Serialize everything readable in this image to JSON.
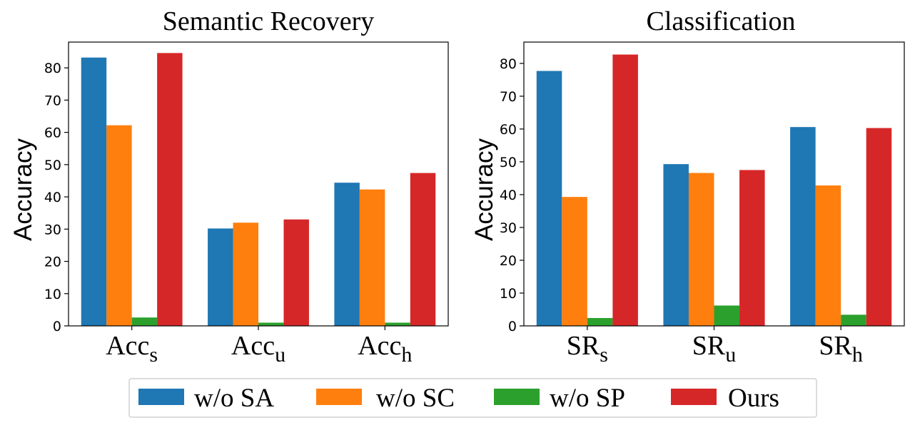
{
  "colors": {
    "w/o SA": "#1f77b4",
    "w/o SC": "#ff7f0e",
    "w/o SP": "#2ca02c",
    "Ours": "#d62728"
  },
  "legend": [
    "w/o SA",
    "w/o SC",
    "w/o SP",
    "Ours"
  ],
  "chart_data": [
    {
      "type": "bar",
      "title": "Semantic Recovery",
      "ylabel": "Accuracy",
      "xlabel": "",
      "ylim": [
        0,
        88
      ],
      "yticks": [
        0,
        10,
        20,
        30,
        40,
        50,
        60,
        70,
        80
      ],
      "categories": [
        {
          "base": "Acc",
          "sub": "s"
        },
        {
          "base": "Acc",
          "sub": "u"
        },
        {
          "base": "Acc",
          "sub": "h"
        }
      ],
      "series": [
        {
          "name": "w/o SA",
          "values": [
            83.2,
            30.2,
            44.4
          ]
        },
        {
          "name": "w/o SC",
          "values": [
            62.2,
            32.0,
            42.3
          ]
        },
        {
          "name": "w/o SP",
          "values": [
            2.6,
            1.0,
            1.0
          ]
        },
        {
          "name": "Ours",
          "values": [
            84.6,
            33.0,
            47.4
          ]
        }
      ]
    },
    {
      "type": "bar",
      "title": "Classification",
      "ylabel": "Accuracy",
      "xlabel": "",
      "ylim": [
        0,
        86.5
      ],
      "yticks": [
        0,
        10,
        20,
        30,
        40,
        50,
        60,
        70,
        80
      ],
      "categories": [
        {
          "base": "SR",
          "sub": "s"
        },
        {
          "base": "SR",
          "sub": "u"
        },
        {
          "base": "SR",
          "sub": "h"
        }
      ],
      "series": [
        {
          "name": "w/o SA",
          "values": [
            77.7,
            49.3,
            60.6
          ]
        },
        {
          "name": "w/o SC",
          "values": [
            39.3,
            46.6,
            42.8
          ]
        },
        {
          "name": "w/o SP",
          "values": [
            2.4,
            6.2,
            3.4
          ]
        },
        {
          "name": "Ours",
          "values": [
            82.7,
            47.5,
            60.3
          ]
        }
      ]
    }
  ]
}
